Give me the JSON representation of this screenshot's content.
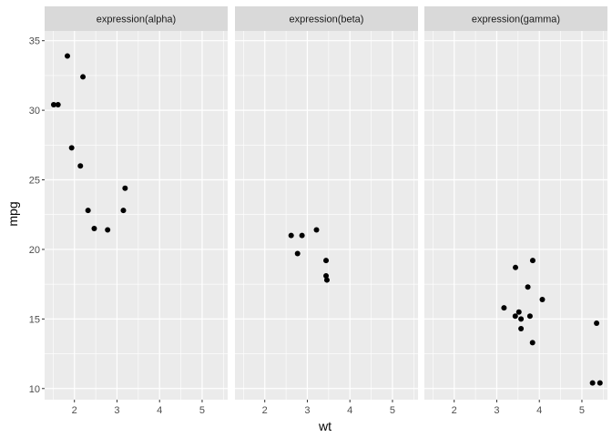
{
  "chart_data": {
    "type": "scatter",
    "xlabel": "wt",
    "ylabel": "mpg",
    "xlim": [
      1.3,
      5.6
    ],
    "ylim": [
      9.2,
      35.7
    ],
    "x_ticks": [
      2,
      3,
      4,
      5
    ],
    "y_ticks": [
      10,
      15,
      20,
      25,
      30,
      35
    ],
    "grid": true,
    "colors": {
      "panel_bg": "#ebebeb",
      "strip_bg": "#d9d9d9",
      "grid": "#ffffff",
      "point": "#000000"
    },
    "panels": [
      {
        "label": "expression(alpha)",
        "points": [
          {
            "x": 1.513,
            "y": 30.4
          },
          {
            "x": 1.615,
            "y": 30.4
          },
          {
            "x": 1.835,
            "y": 33.9
          },
          {
            "x": 1.935,
            "y": 27.3
          },
          {
            "x": 2.14,
            "y": 26.0
          },
          {
            "x": 2.2,
            "y": 32.4
          },
          {
            "x": 2.32,
            "y": 22.8
          },
          {
            "x": 2.465,
            "y": 21.5
          },
          {
            "x": 2.78,
            "y": 21.4
          },
          {
            "x": 3.15,
            "y": 22.8
          },
          {
            "x": 3.19,
            "y": 24.4
          }
        ]
      },
      {
        "label": "expression(beta)",
        "points": [
          {
            "x": 2.62,
            "y": 21.0
          },
          {
            "x": 2.77,
            "y": 19.7
          },
          {
            "x": 2.875,
            "y": 21.0
          },
          {
            "x": 3.215,
            "y": 21.4
          },
          {
            "x": 3.44,
            "y": 18.1
          },
          {
            "x": 3.44,
            "y": 19.2
          },
          {
            "x": 3.46,
            "y": 17.8
          }
        ]
      },
      {
        "label": "expression(gamma)",
        "points": [
          {
            "x": 3.17,
            "y": 15.8
          },
          {
            "x": 3.435,
            "y": 15.2
          },
          {
            "x": 3.44,
            "y": 18.7
          },
          {
            "x": 3.52,
            "y": 15.5
          },
          {
            "x": 3.57,
            "y": 14.3
          },
          {
            "x": 3.57,
            "y": 15.0
          },
          {
            "x": 3.73,
            "y": 17.3
          },
          {
            "x": 3.78,
            "y": 15.2
          },
          {
            "x": 3.84,
            "y": 13.3
          },
          {
            "x": 3.845,
            "y": 19.2
          },
          {
            "x": 4.07,
            "y": 16.4
          },
          {
            "x": 5.25,
            "y": 10.4
          },
          {
            "x": 5.345,
            "y": 14.7
          },
          {
            "x": 5.424,
            "y": 10.4
          }
        ]
      }
    ]
  }
}
